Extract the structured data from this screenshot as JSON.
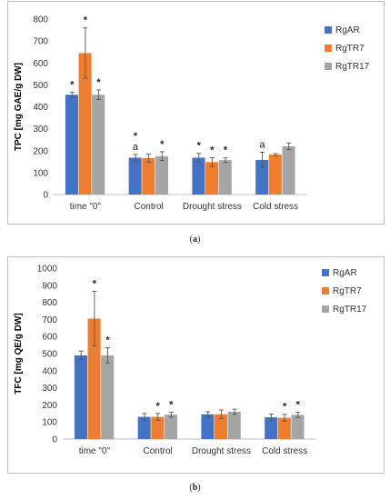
{
  "figure": {
    "caption_a": {
      "open": "(",
      "letter": "a",
      "close": ")"
    },
    "caption_b": {
      "open": "(",
      "letter": "b",
      "close": ")"
    }
  },
  "colors": {
    "RgAR": "#4472C4",
    "RgTR7": "#ED7D31",
    "RgTR17": "#A5A5A5"
  },
  "chart_data": [
    {
      "type": "bar",
      "ylabel": "TPC [mg GAE/g DW]",
      "xlabel": "",
      "ylim": [
        0,
        800
      ],
      "yticks": [
        0,
        100,
        200,
        300,
        400,
        500,
        600,
        700,
        800
      ],
      "grid": false,
      "legend_position": "top-right",
      "categories": [
        "time \"0\"",
        "Control",
        "Drought stress",
        "Cold stress"
      ],
      "series": [
        {
          "name": "RgAR",
          "color": "#4472C4",
          "values": [
            455,
            168,
            168,
            158
          ],
          "errors": [
            12,
            15,
            20,
            35
          ],
          "annotations": [
            "*",
            "*a",
            "*",
            "a"
          ]
        },
        {
          "name": "RgTR7",
          "color": "#ED7D31",
          "values": [
            645,
            166,
            148,
            182
          ],
          "errors": [
            115,
            18,
            20,
            5
          ],
          "annotations": [
            "*",
            "",
            "*",
            ""
          ]
        },
        {
          "name": "RgTR17",
          "color": "#A5A5A5",
          "values": [
            455,
            175,
            157,
            220
          ],
          "errors": [
            22,
            20,
            10,
            15
          ],
          "annotations": [
            "*",
            "*",
            "*",
            ""
          ]
        }
      ]
    },
    {
      "type": "bar",
      "ylabel": "TFC [mg QE/g DW]",
      "xlabel": "",
      "ylim": [
        0,
        1000
      ],
      "yticks": [
        0,
        100,
        200,
        300,
        400,
        500,
        600,
        700,
        800,
        900,
        1000
      ],
      "grid": false,
      "legend_position": "top-right",
      "categories": [
        "time \"0\"",
        "Control",
        "Drought stress",
        "Cold stress"
      ],
      "series": [
        {
          "name": "RgAR",
          "color": "#4472C4",
          "values": [
            490,
            130,
            145,
            128
          ],
          "errors": [
            25,
            20,
            15,
            18
          ],
          "annotations": [
            "",
            "",
            "",
            ""
          ]
        },
        {
          "name": "RgTR7",
          "color": "#ED7D31",
          "values": [
            705,
            130,
            145,
            125
          ],
          "errors": [
            160,
            20,
            25,
            20
          ],
          "annotations": [
            "*",
            "*",
            "",
            "*"
          ]
        },
        {
          "name": "RgTR17",
          "color": "#A5A5A5",
          "values": [
            490,
            143,
            160,
            142
          ],
          "errors": [
            45,
            15,
            15,
            15
          ],
          "annotations": [
            "*",
            "*",
            "",
            "*"
          ]
        }
      ]
    }
  ]
}
